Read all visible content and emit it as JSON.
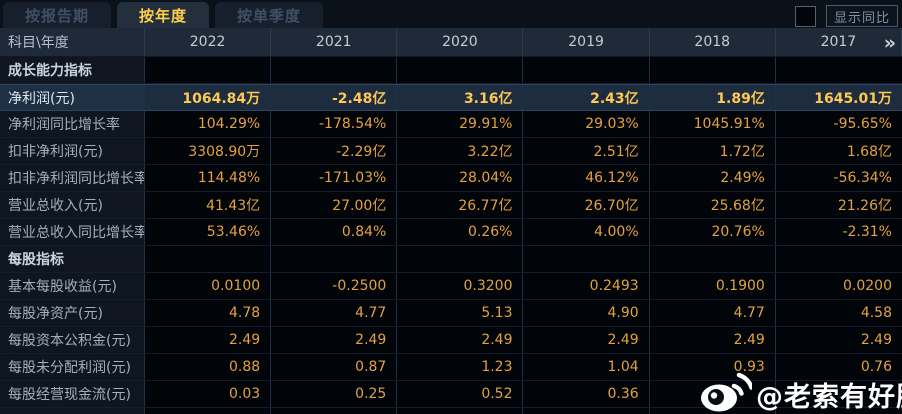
{
  "tabs": [
    {
      "label": "按报告期",
      "active": false
    },
    {
      "label": "按年度",
      "active": true
    },
    {
      "label": "按单季度",
      "active": false
    }
  ],
  "controls": {
    "show_yoy_label": "显示同比",
    "checkbox_checked": false
  },
  "table": {
    "corner_label": "科目\\年度",
    "years": [
      "2022",
      "2021",
      "2020",
      "2019",
      "2018",
      "2017"
    ],
    "more_icon": "»",
    "rows": [
      {
        "type": "section",
        "label": "成长能力指标"
      },
      {
        "type": "data",
        "label": "净利润(元)",
        "highlight": true,
        "values": [
          "1064.84万",
          "-2.48亿",
          "3.16亿",
          "2.43亿",
          "1.89亿",
          "1645.01万"
        ]
      },
      {
        "type": "data",
        "label": "净利润同比增长率",
        "values": [
          "104.29%",
          "-178.54%",
          "29.91%",
          "29.03%",
          "1045.91%",
          "-95.65%"
        ]
      },
      {
        "type": "data",
        "label": "扣非净利润(元)",
        "values": [
          "3308.90万",
          "-2.29亿",
          "3.22亿",
          "2.51亿",
          "1.72亿",
          "1.68亿"
        ]
      },
      {
        "type": "data",
        "label": "扣非净利润同比增长率",
        "values": [
          "114.48%",
          "-171.03%",
          "28.04%",
          "46.12%",
          "2.49%",
          "-56.34%"
        ]
      },
      {
        "type": "data",
        "label": "营业总收入(元)",
        "values": [
          "41.43亿",
          "27.00亿",
          "26.77亿",
          "26.70亿",
          "25.68亿",
          "21.26亿"
        ]
      },
      {
        "type": "data",
        "label": "营业总收入同比增长率",
        "values": [
          "53.46%",
          "0.84%",
          "0.26%",
          "4.00%",
          "20.76%",
          "-2.31%"
        ]
      },
      {
        "type": "section",
        "label": "每股指标"
      },
      {
        "type": "data",
        "label": "基本每股收益(元)",
        "values": [
          "0.0100",
          "-0.2500",
          "0.3200",
          "0.2493",
          "0.1900",
          "0.0200"
        ]
      },
      {
        "type": "data",
        "label": "每股净资产(元)",
        "values": [
          "4.78",
          "4.77",
          "5.13",
          "4.90",
          "4.77",
          "4.58"
        ]
      },
      {
        "type": "data",
        "label": "每股资本公积金(元)",
        "values": [
          "2.49",
          "2.49",
          "2.49",
          "2.49",
          "2.49",
          "2.49"
        ]
      },
      {
        "type": "data",
        "label": "每股未分配利润(元)",
        "values": [
          "0.88",
          "0.87",
          "1.23",
          "1.04",
          "0.93",
          "0.76"
        ]
      },
      {
        "type": "data",
        "label": "每股经营现金流(元)",
        "values": [
          "0.03",
          "0.25",
          "0.52",
          "0.36",
          "",
          ""
        ]
      }
    ]
  },
  "watermark": {
    "icon": "weibo-icon",
    "text": "@老索有好股"
  },
  "colors": {
    "value_gold": "#e4a23e",
    "highlight_gold": "#ffc753",
    "active_tab_text": "#ffd04a",
    "header_bg": "#1e2a38",
    "highlight_row_bg": "#1d2c3f"
  }
}
